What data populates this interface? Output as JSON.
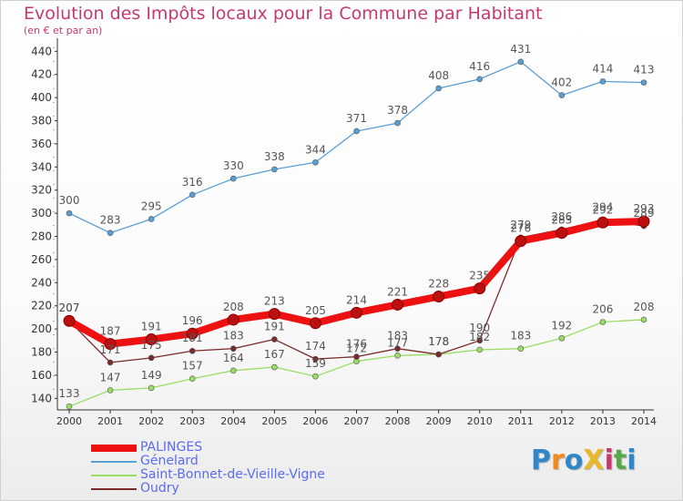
{
  "title": "Evolution des Impôts locaux pour la Commune par Habitant",
  "subtitle": "(en € et par an)",
  "logo": {
    "text": "ProXiti",
    "colors": [
      "#2f86c8",
      "#f08a1c",
      "#2f86c8",
      "#e8b828",
      "#c8386c",
      "#58a84a",
      "#2f86c8"
    ]
  },
  "chart_data": {
    "type": "line",
    "x": [
      "2000",
      "2001",
      "2002",
      "2003",
      "2004",
      "2005",
      "2006",
      "2007",
      "2008",
      "2009",
      "2010",
      "2011",
      "2012",
      "2013",
      "2014"
    ],
    "ylim": [
      130,
      445
    ],
    "yticks": [
      140,
      160,
      180,
      200,
      220,
      240,
      260,
      280,
      300,
      320,
      340,
      360,
      380,
      400,
      420,
      440
    ],
    "grid": false,
    "legend_position": "bottom-left",
    "series": [
      {
        "name": "PALINGES",
        "color": "#ee1111",
        "values": [
          207,
          187,
          191,
          196,
          208,
          213,
          205,
          214,
          221,
          228,
          235,
          276,
          283,
          292,
          293
        ]
      },
      {
        "name": "Génelard",
        "color": "#5a9fd4",
        "values": [
          300,
          283,
          295,
          316,
          330,
          338,
          344,
          371,
          378,
          408,
          416,
          431,
          402,
          414,
          413
        ]
      },
      {
        "name": "Saint-Bonnet-de-Vieille-Vigne",
        "color": "#99dd66",
        "values": [
          133,
          147,
          149,
          157,
          164,
          167,
          159,
          172,
          177,
          178,
          182,
          183,
          192,
          206,
          208
        ]
      },
      {
        "name": "Oudry",
        "color": "#7a2a2a",
        "values": [
          207,
          171,
          175,
          181,
          183,
          191,
          174,
          176,
          183,
          178,
          190,
          279,
          286,
          294,
          289
        ]
      }
    ]
  }
}
